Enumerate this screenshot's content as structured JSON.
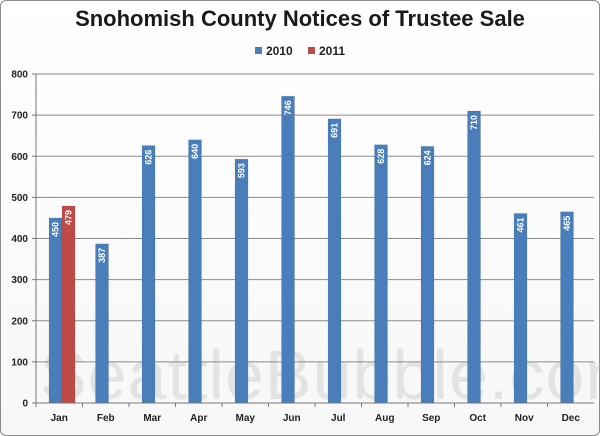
{
  "watermark": "SeattleBubble.com",
  "chart_data": {
    "type": "bar",
    "title": "Snohomish County Notices of Trustee Sale",
    "categories": [
      "Jan",
      "Feb",
      "Mar",
      "Apr",
      "May",
      "Jun",
      "Jul",
      "Aug",
      "Sep",
      "Oct",
      "Nov",
      "Dec"
    ],
    "series": [
      {
        "name": "2010",
        "color": "#4a7ebb",
        "values": [
          450,
          387,
          626,
          640,
          593,
          746,
          691,
          628,
          624,
          710,
          461,
          465
        ]
      },
      {
        "name": "2011",
        "color": "#be4b48",
        "values": [
          479,
          null,
          null,
          null,
          null,
          null,
          null,
          null,
          null,
          null,
          null,
          null
        ]
      }
    ],
    "ylim": [
      0,
      800
    ],
    "yticks": [
      0,
      100,
      200,
      300,
      400,
      500,
      600,
      700,
      800
    ],
    "grid": true,
    "legend_position": "top"
  }
}
